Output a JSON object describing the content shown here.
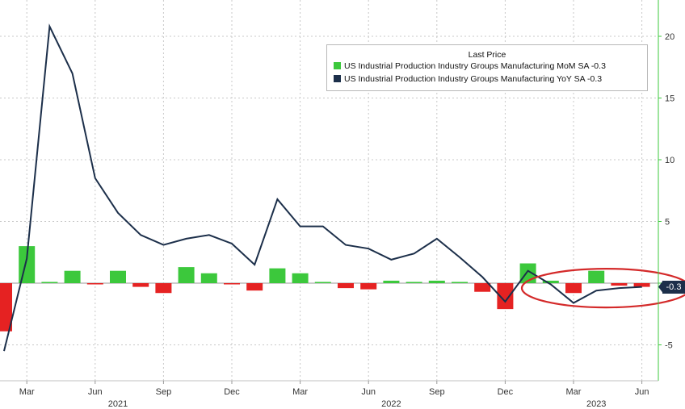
{
  "chart_data": {
    "type": "bar+line",
    "categories": [
      "2021-02",
      "2021-03",
      "2021-04",
      "2021-05",
      "2021-06",
      "2021-07",
      "2021-08",
      "2021-09",
      "2021-10",
      "2021-11",
      "2021-12",
      "2022-01",
      "2022-02",
      "2022-03",
      "2022-04",
      "2022-05",
      "2022-06",
      "2022-07",
      "2022-08",
      "2022-09",
      "2022-10",
      "2022-11",
      "2022-12",
      "2023-01",
      "2023-02",
      "2023-03",
      "2023-04",
      "2023-05",
      "2023-06"
    ],
    "x_ticks": [
      {
        "label": "Mar",
        "x": "2021-03"
      },
      {
        "label": "Jun",
        "x": "2021-06"
      },
      {
        "label": "Sep",
        "x": "2021-09"
      },
      {
        "label": "Dec",
        "x": "2021-12"
      },
      {
        "label": "Mar",
        "x": "2022-03"
      },
      {
        "label": "Jun",
        "x": "2022-06"
      },
      {
        "label": "Sep",
        "x": "2022-09"
      },
      {
        "label": "Dec",
        "x": "2022-12"
      },
      {
        "label": "Mar",
        "x": "2023-03"
      },
      {
        "label": "Jun",
        "x": "2023-06"
      }
    ],
    "year_labels": [
      {
        "label": "2021",
        "x": "2021-07"
      },
      {
        "label": "2022",
        "x": "2022-07"
      },
      {
        "label": "2023",
        "x": "2023-04"
      }
    ],
    "y_ticks": [
      -5,
      0,
      5,
      10,
      15,
      20
    ],
    "y_tick_labels": [
      "-5",
      "",
      "5",
      "10",
      "15",
      "20"
    ],
    "ylim": [
      -7.5,
      23
    ],
    "series": [
      {
        "name": "US Industrial Production Industry Groups Manufacturing MoM SA",
        "last_value": "-0.3",
        "type": "bar",
        "color_pos": "#3cc83c",
        "color_neg": "#e52222",
        "values": [
          -3.9,
          3.0,
          0.1,
          1.0,
          -0.1,
          1.0,
          -0.3,
          -0.8,
          1.3,
          0.8,
          -0.1,
          -0.6,
          1.2,
          0.8,
          0.1,
          -0.4,
          -0.5,
          0.2,
          0.1,
          0.2,
          0.1,
          -0.7,
          -2.1,
          1.6,
          0.2,
          -0.8,
          1.0,
          -0.2,
          -0.3
        ]
      },
      {
        "name": "US Industrial Production Industry Groups Manufacturing YoY SA",
        "last_value": "-0.3",
        "type": "line",
        "color": "#1c2f4a",
        "values": [
          -5.5,
          2.0,
          20.8,
          17.0,
          8.5,
          5.7,
          3.9,
          3.1,
          3.6,
          3.9,
          3.2,
          1.5,
          6.8,
          4.6,
          4.6,
          3.1,
          2.8,
          1.9,
          2.4,
          3.6,
          2.1,
          0.5,
          -1.5,
          1.0,
          -0.1,
          -1.6,
          -0.6,
          -0.4,
          -0.3
        ]
      }
    ],
    "legend": {
      "title": "Last Price",
      "position": "top-right"
    },
    "last_value_badge": "-0.3",
    "annotation": "red ellipse highlighting Mar-Jun 2023",
    "grid": true
  }
}
